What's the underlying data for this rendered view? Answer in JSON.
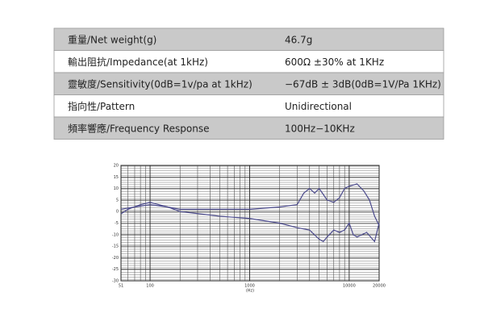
{
  "table": {
    "rows": [
      [
        "重量/Net weight(g)",
        "46.7g"
      ],
      [
        "輸出阻抗/Impedance(at 1kHz)",
        "600Ω ±30% at 1KHz"
      ],
      [
        "靈敏度/Sensitivity(0dB=1v/pa at 1kHz)",
        "−67dB ± 3dB(0dB=1V/Pa 1KHz)"
      ],
      [
        "指向性/Pattern",
        "Unidirectional"
      ],
      [
        "頻率響應/Frequency Response",
        "100Hz−10KHz"
      ]
    ]
  },
  "chart_data": {
    "type": "line",
    "x_label": "(Hz)",
    "log_x": true,
    "xlim": [
      51,
      20000
    ],
    "xticks": [
      51,
      100,
      1000,
      10000,
      20000
    ],
    "ylim": [
      -30,
      20
    ],
    "yticks": [
      20,
      15,
      10,
      5,
      0,
      -5,
      -10,
      -15,
      -20,
      -25,
      -30
    ],
    "grid": true,
    "series": [
      {
        "color": "#4b4a8c",
        "x": [
          51,
          60,
          80,
          100,
          150,
          200,
          300,
          500,
          1000,
          2000,
          3000,
          3500,
          4000,
          4500,
          5000,
          6000,
          7000,
          8000,
          9000,
          10000,
          12000,
          14000,
          16000,
          18000,
          20000
        ],
        "values": [
          -1,
          1,
          3,
          4,
          2,
          1,
          1,
          1,
          1,
          2,
          3,
          8,
          10,
          8,
          10,
          5,
          4,
          6,
          10,
          11,
          12,
          9,
          5,
          -2,
          -6
        ]
      },
      {
        "color": "#4b4a8c",
        "x": [
          51,
          70,
          100,
          150,
          200,
          500,
          1000,
          2000,
          3000,
          4000,
          5000,
          5500,
          6000,
          7000,
          8000,
          9000,
          10000,
          11000,
          12000,
          15000,
          18000,
          20000
        ],
        "values": [
          1,
          2,
          3,
          2,
          0,
          -2,
          -3,
          -5,
          -7,
          -8,
          -12,
          -13,
          -11,
          -8,
          -9,
          -8,
          -5,
          -10,
          -11,
          -9,
          -13,
          -5
        ]
      }
    ]
  }
}
